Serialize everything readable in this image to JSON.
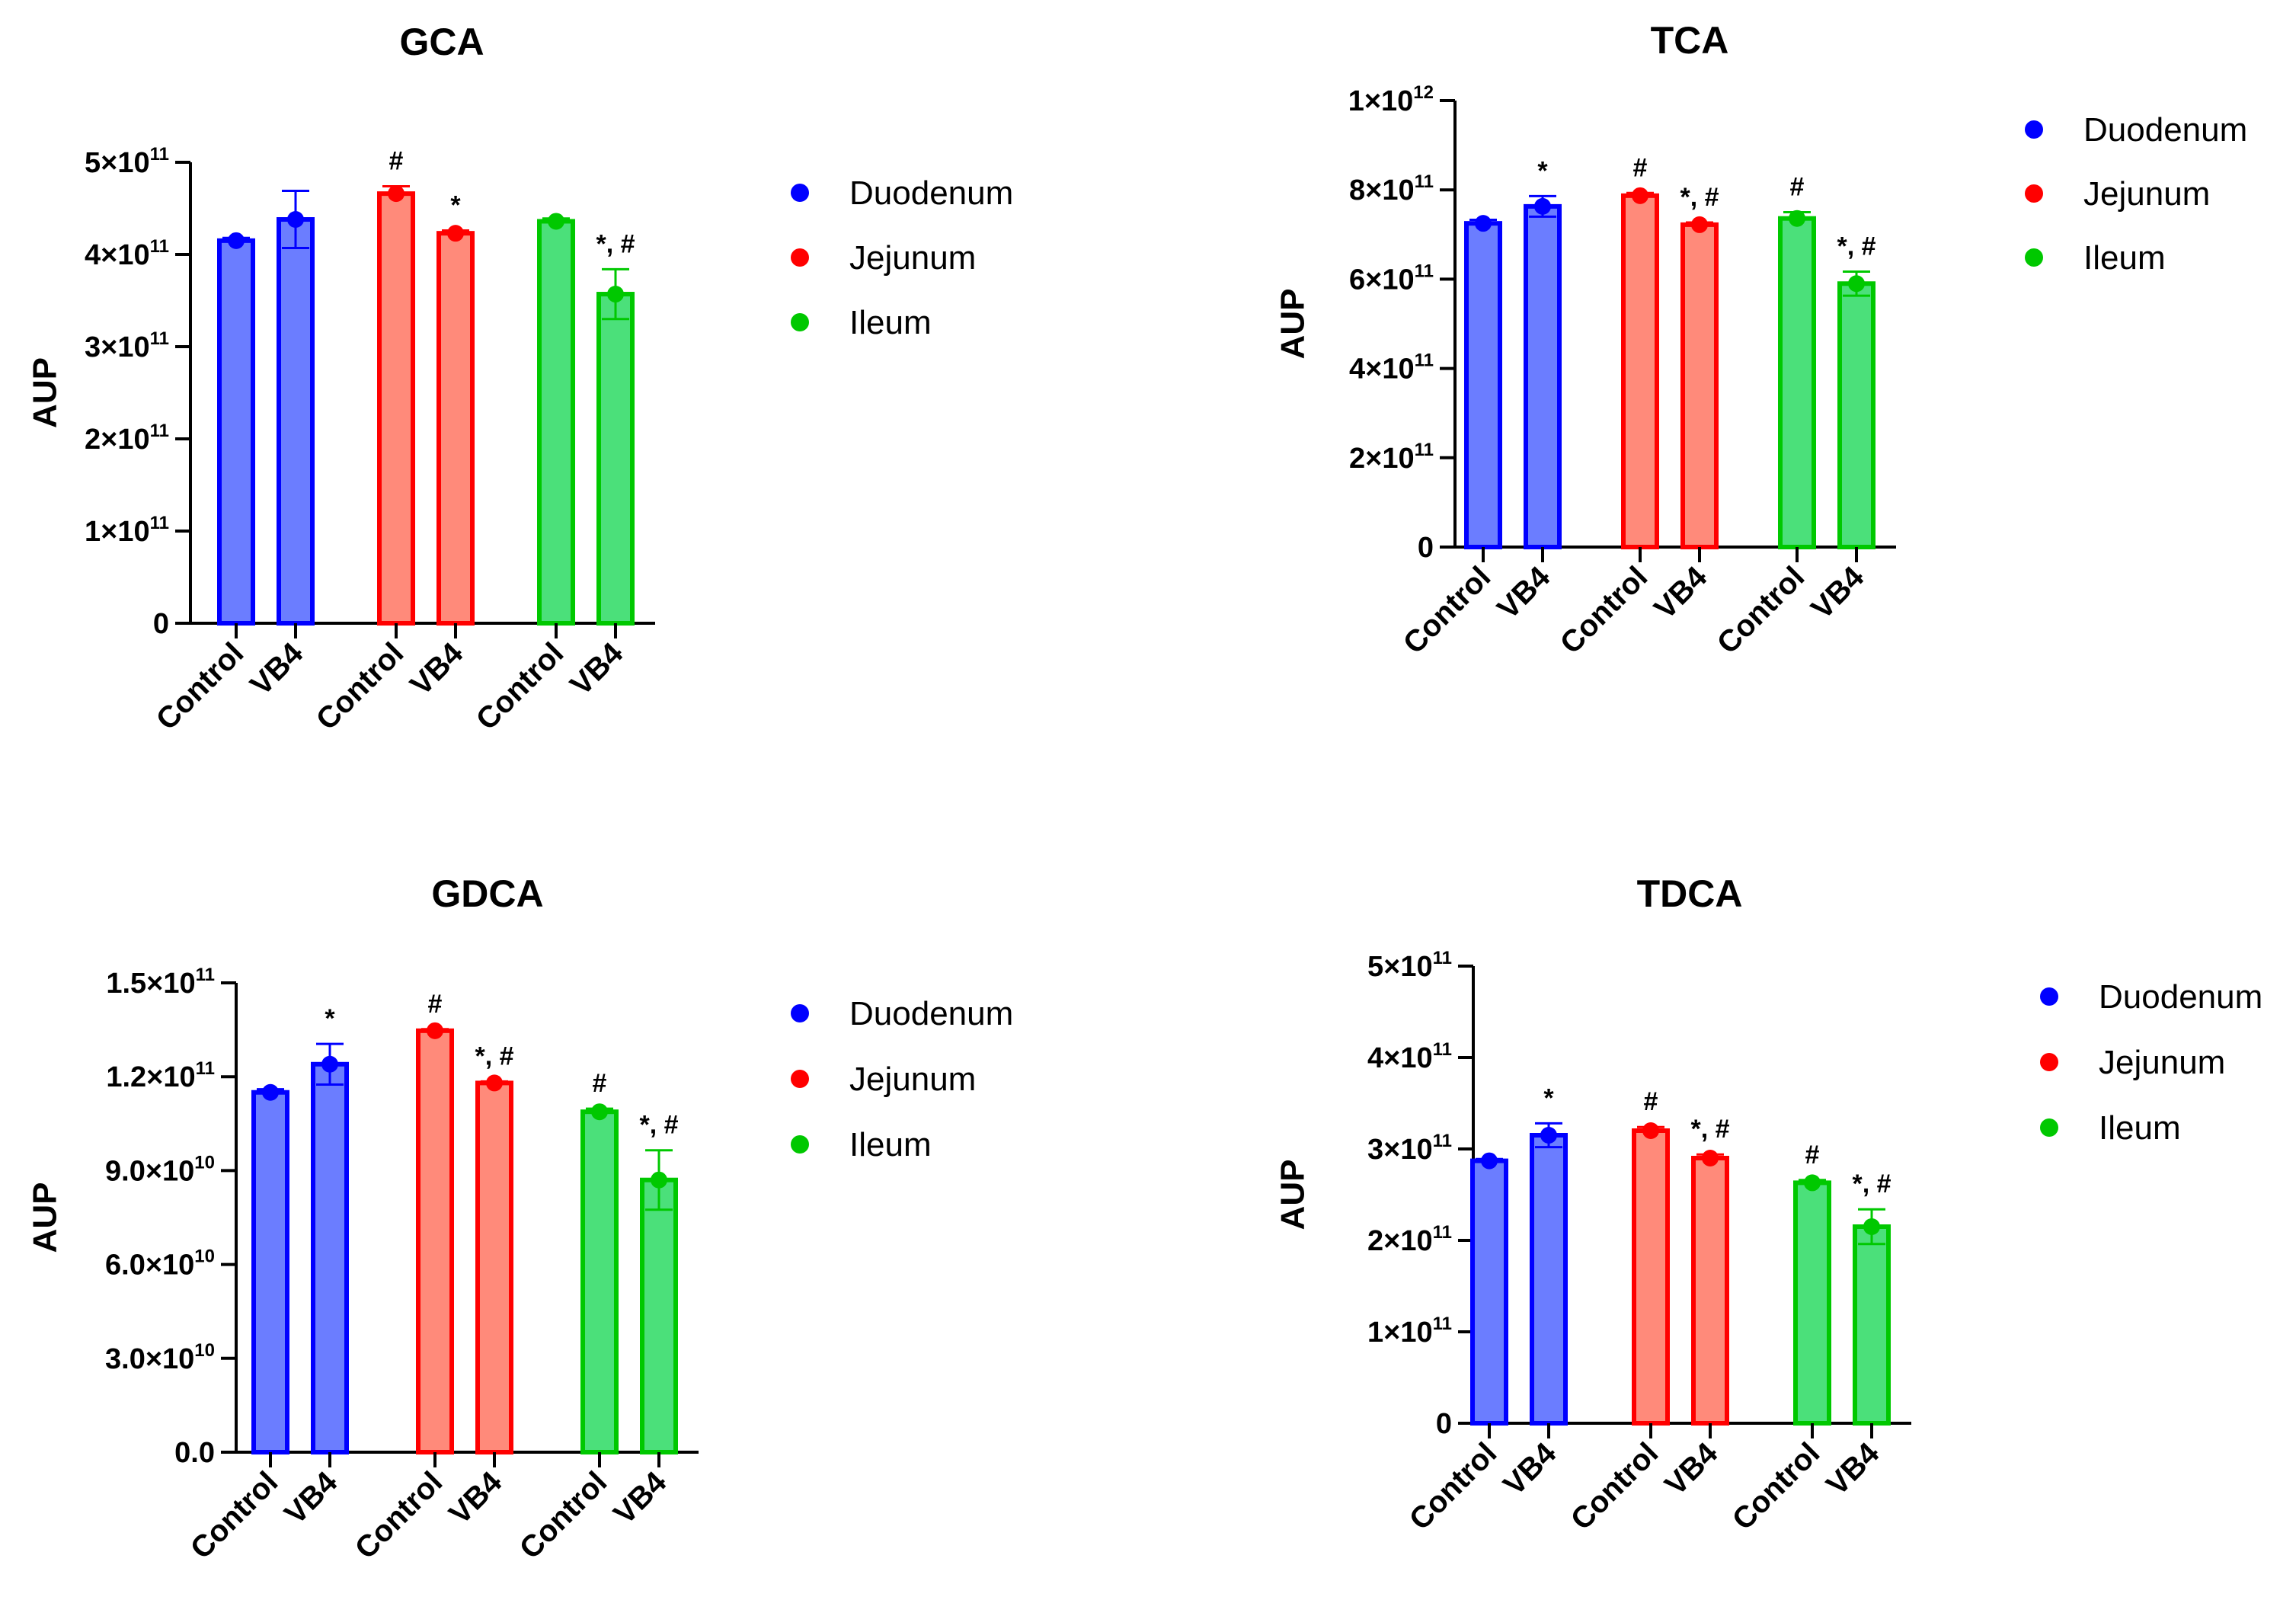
{
  "chart_data": [
    {
      "type": "bar",
      "title": "GCA",
      "ylabel": "AUP",
      "exponent": 11,
      "ylim": [
        0,
        500000000000.0
      ],
      "yticks": [
        {
          "value": 0,
          "m": "0",
          "e": ""
        },
        {
          "value": 100000000000.0,
          "m": "1×10",
          "e": "11"
        },
        {
          "value": 200000000000.0,
          "m": "2×10",
          "e": "11"
        },
        {
          "value": 300000000000.0,
          "m": "3×10",
          "e": "11"
        },
        {
          "value": 400000000000.0,
          "m": "4×10",
          "e": "11"
        },
        {
          "value": 500000000000.0,
          "m": "5×10",
          "e": "11"
        }
      ],
      "categories": [
        "Control",
        "VB4",
        "Control",
        "VB4",
        "Control",
        "VB4"
      ],
      "groups": [
        "Duodenum",
        "Duodenum",
        "Jejunum",
        "Jejunum",
        "Ileum",
        "Ileum"
      ],
      "values": [
        415000000000.0,
        438000000000.0,
        466000000000.0,
        423000000000.0,
        436000000000.0,
        357000000000.0
      ],
      "errors": [
        3000000000.0,
        31000000000.0,
        8000000000.0,
        3000000000.0,
        3000000000.0,
        27000000000.0
      ],
      "annotations": [
        "",
        "",
        "#",
        "*",
        "",
        "*, #"
      ],
      "legend": [
        {
          "label": "Duodenum",
          "color": "#0000ff"
        },
        {
          "label": "Jejunum",
          "color": "#ff0000"
        },
        {
          "label": "Ileum",
          "color": "#00c800"
        }
      ],
      "legend_position": "right"
    },
    {
      "type": "bar",
      "title": "TCA",
      "ylabel": "AUP",
      "exponent": 11,
      "ylim": [
        0,
        1000000000000.0
      ],
      "yticks": [
        {
          "value": 0,
          "m": "0",
          "e": ""
        },
        {
          "value": 200000000000.0,
          "m": "2×10",
          "e": "11"
        },
        {
          "value": 400000000000.0,
          "m": "4×10",
          "e": "11"
        },
        {
          "value": 600000000000.0,
          "m": "6×10",
          "e": "11"
        },
        {
          "value": 800000000000.0,
          "m": "8×10",
          "e": "11"
        },
        {
          "value": 1000000000000.0,
          "m": "1×10",
          "e": "12"
        }
      ],
      "categories": [
        "Control",
        "VB4",
        "Control",
        "VB4",
        "Control",
        "VB4"
      ],
      "groups": [
        "Duodenum",
        "Duodenum",
        "Jejunum",
        "Jejunum",
        "Ileum",
        "Ileum"
      ],
      "values": [
        725000000000.0,
        763000000000.0,
        787000000000.0,
        722000000000.0,
        736000000000.0,
        590000000000.0
      ],
      "errors": [
        8000000000.0,
        23000000000.0,
        6000000000.0,
        5000000000.0,
        14000000000.0,
        27000000000.0
      ],
      "annotations": [
        "",
        "*",
        "#",
        "*, #",
        "#",
        "*, #"
      ],
      "legend": [
        {
          "label": "Duodenum",
          "color": "#0000ff"
        },
        {
          "label": "Jejunum",
          "color": "#ff0000"
        },
        {
          "label": "Ileum",
          "color": "#00c800"
        }
      ],
      "legend_position": "right"
    },
    {
      "type": "bar",
      "title": "GDCA",
      "ylabel": "AUP",
      "exponent": 10,
      "ylim": [
        0,
        150000000000.0
      ],
      "yticks": [
        {
          "value": 0,
          "m": "0.0",
          "e": ""
        },
        {
          "value": 30000000000.0,
          "m": "3.0×10",
          "e": "10"
        },
        {
          "value": 60000000000.0,
          "m": "6.0×10",
          "e": "10"
        },
        {
          "value": 90000000000.0,
          "m": "9.0×10",
          "e": "10"
        },
        {
          "value": 120000000000.0,
          "m": "1.2×10",
          "e": "11"
        },
        {
          "value": 150000000000.0,
          "m": "1.5×10",
          "e": "11"
        }
      ],
      "categories": [
        "Control",
        "VB4",
        "Control",
        "VB4",
        "Control",
        "VB4"
      ],
      "groups": [
        "Duodenum",
        "Duodenum",
        "Jejunum",
        "Jejunum",
        "Ileum",
        "Ileum"
      ],
      "values": [
        115000000000.0,
        124000000000.0,
        134700000000.0,
        118000000000.0,
        108800000000.0,
        87000000000.0
      ],
      "errors": [
        1000000000.0,
        6500000000.0,
        500000000.0,
        500000000.0,
        1000000000.0,
        9500000000.0
      ],
      "annotations": [
        "",
        "*",
        "#",
        "*, #",
        "#",
        "*, #"
      ],
      "legend": [
        {
          "label": "Duodenum",
          "color": "#0000ff"
        },
        {
          "label": "Jejunum",
          "color": "#ff0000"
        },
        {
          "label": "Ileum",
          "color": "#00c800"
        }
      ],
      "legend_position": "right"
    },
    {
      "type": "bar",
      "title": "TDCA",
      "ylabel": "AUP",
      "exponent": 11,
      "ylim": [
        0,
        500000000000.0
      ],
      "yticks": [
        {
          "value": 0,
          "m": "0",
          "e": ""
        },
        {
          "value": 100000000000.0,
          "m": "1×10",
          "e": "11"
        },
        {
          "value": 200000000000.0,
          "m": "2×10",
          "e": "11"
        },
        {
          "value": 300000000000.0,
          "m": "3×10",
          "e": "11"
        },
        {
          "value": 400000000000.0,
          "m": "4×10",
          "e": "11"
        },
        {
          "value": 500000000000.0,
          "m": "5×10",
          "e": "11"
        }
      ],
      "categories": [
        "Control",
        "VB4",
        "Control",
        "VB4",
        "Control",
        "VB4"
      ],
      "groups": [
        "Duodenum",
        "Duodenum",
        "Jejunum",
        "Jejunum",
        "Ileum",
        "Ileum"
      ],
      "values": [
        287000000000.0,
        315000000000.0,
        320000000000.0,
        290000000000.0,
        263000000000.0,
        215000000000.0
      ],
      "errors": [
        2000000000.0,
        13000000000.0,
        4000000000.0,
        4000000000.0,
        3000000000.0,
        19000000000.0
      ],
      "annotations": [
        "",
        "*",
        "#",
        "*, #",
        "#",
        "*, #"
      ],
      "legend": [
        {
          "label": "Duodenum",
          "color": "#0000ff"
        },
        {
          "label": "Jejunum",
          "color": "#ff0000"
        },
        {
          "label": "Ileum",
          "color": "#00c800"
        }
      ],
      "legend_position": "right"
    }
  ],
  "colors": {
    "Duodenum": {
      "stroke": "#0000ff",
      "fill": "#6b7dff",
      "dot": "#0000ff"
    },
    "Jejunum": {
      "stroke": "#ff0000",
      "fill": "#ff8a7a",
      "dot": "#ff0000"
    },
    "Ileum": {
      "stroke": "#00c800",
      "fill": "#4be07a",
      "dot": "#00c800"
    }
  }
}
